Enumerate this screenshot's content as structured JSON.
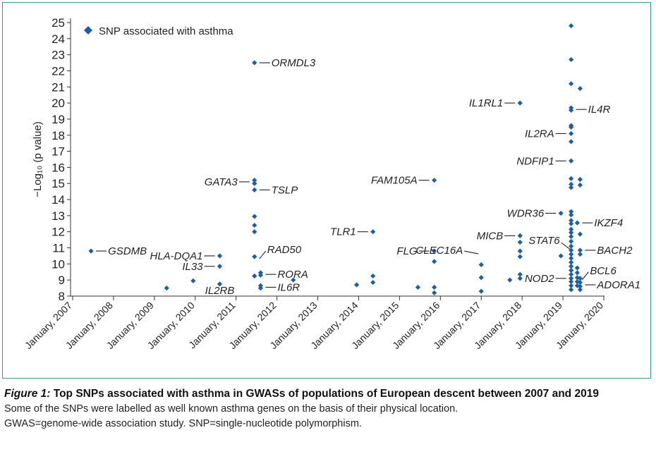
{
  "chart_data": {
    "type": "scatter",
    "ylabel": "−Log₁₀ (p value)",
    "ylim": [
      8,
      25
    ],
    "yticks": [
      8,
      9,
      10,
      11,
      12,
      13,
      14,
      15,
      16,
      17,
      18,
      19,
      20,
      21,
      22,
      23,
      24,
      25
    ],
    "xlim": [
      2007,
      2020
    ],
    "xticks": [
      {
        "value": 2007,
        "label": "January, 2007"
      },
      {
        "value": 2008,
        "label": "January, 2008"
      },
      {
        "value": 2009,
        "label": "January, 2009"
      },
      {
        "value": 2010,
        "label": "January, 2010"
      },
      {
        "value": 2011,
        "label": "January, 2011"
      },
      {
        "value": 2012,
        "label": "January, 2012"
      },
      {
        "value": 2013,
        "label": "January, 2013"
      },
      {
        "value": 2014,
        "label": "January, 2014"
      },
      {
        "value": 2015,
        "label": "January, 2015"
      },
      {
        "value": 2016,
        "label": "January, 2016"
      },
      {
        "value": 2017,
        "label": "January, 2017"
      },
      {
        "value": 2018,
        "label": "January, 2018"
      },
      {
        "value": 2019,
        "label": "January, 2019"
      },
      {
        "value": 2020,
        "label": "January, 2020"
      }
    ],
    "legend": {
      "label": "SNP associated with asthma",
      "position": "top-left"
    },
    "marker_color": "#1b5fa8",
    "series": [
      {
        "points": [
          {
            "x": 2007.45,
            "y": 10.8
          },
          {
            "x": 2009.3,
            "y": 8.5
          },
          {
            "x": 2009.95,
            "y": 8.95
          },
          {
            "x": 2010.6,
            "y": 10.5
          },
          {
            "x": 2010.6,
            "y": 9.85
          },
          {
            "x": 2010.6,
            "y": 8.75
          },
          {
            "x": 2011.45,
            "y": 22.5
          },
          {
            "x": 2011.45,
            "y": 15.2
          },
          {
            "x": 2011.45,
            "y": 15.0
          },
          {
            "x": 2011.45,
            "y": 14.6
          },
          {
            "x": 2011.45,
            "y": 12.95
          },
          {
            "x": 2011.45,
            "y": 12.4
          },
          {
            "x": 2011.45,
            "y": 12.0
          },
          {
            "x": 2011.45,
            "y": 10.45
          },
          {
            "x": 2011.45,
            "y": 9.25
          },
          {
            "x": 2011.6,
            "y": 9.45
          },
          {
            "x": 2011.6,
            "y": 9.3
          },
          {
            "x": 2011.6,
            "y": 8.65
          },
          {
            "x": 2011.6,
            "y": 8.5
          },
          {
            "x": 2012.4,
            "y": 9.0
          },
          {
            "x": 2013.95,
            "y": 8.7
          },
          {
            "x": 2014.35,
            "y": 12.0
          },
          {
            "x": 2014.35,
            "y": 9.25
          },
          {
            "x": 2014.35,
            "y": 8.85
          },
          {
            "x": 2015.45,
            "y": 8.55
          },
          {
            "x": 2015.85,
            "y": 15.2
          },
          {
            "x": 2015.85,
            "y": 10.8
          },
          {
            "x": 2015.85,
            "y": 10.15
          },
          {
            "x": 2015.85,
            "y": 8.55
          },
          {
            "x": 2015.85,
            "y": 8.2
          },
          {
            "x": 2017.0,
            "y": 9.95
          },
          {
            "x": 2017.0,
            "y": 9.15
          },
          {
            "x": 2017.0,
            "y": 8.3
          },
          {
            "x": 2017.7,
            "y": 9.0
          },
          {
            "x": 2017.95,
            "y": 20.0
          },
          {
            "x": 2017.95,
            "y": 11.75
          },
          {
            "x": 2017.95,
            "y": 11.35
          },
          {
            "x": 2017.95,
            "y": 10.8
          },
          {
            "x": 2017.95,
            "y": 10.45
          },
          {
            "x": 2017.95,
            "y": 9.35
          },
          {
            "x": 2017.95,
            "y": 9.1
          },
          {
            "x": 2018.95,
            "y": 13.15
          },
          {
            "x": 2019.2,
            "y": 24.8
          },
          {
            "x": 2019.2,
            "y": 22.7
          },
          {
            "x": 2019.2,
            "y": 21.2
          },
          {
            "x": 2019.2,
            "y": 19.7
          },
          {
            "x": 2019.2,
            "y": 19.55
          },
          {
            "x": 2019.2,
            "y": 18.6
          },
          {
            "x": 2019.2,
            "y": 18.5
          },
          {
            "x": 2019.2,
            "y": 18.1
          },
          {
            "x": 2019.2,
            "y": 17.6
          },
          {
            "x": 2019.2,
            "y": 16.4
          },
          {
            "x": 2019.2,
            "y": 15.3
          },
          {
            "x": 2019.2,
            "y": 14.95
          },
          {
            "x": 2019.2,
            "y": 14.75
          },
          {
            "x": 2019.2,
            "y": 13.25
          },
          {
            "x": 2019.2,
            "y": 13.05
          },
          {
            "x": 2019.2,
            "y": 12.7
          },
          {
            "x": 2019.2,
            "y": 12.5
          },
          {
            "x": 2019.2,
            "y": 12.15
          },
          {
            "x": 2019.2,
            "y": 11.95
          },
          {
            "x": 2019.2,
            "y": 11.7
          },
          {
            "x": 2019.2,
            "y": 11.4
          },
          {
            "x": 2019.2,
            "y": 11.1
          },
          {
            "x": 2019.2,
            "y": 10.85
          },
          {
            "x": 2019.2,
            "y": 10.6
          },
          {
            "x": 2019.2,
            "y": 10.35
          },
          {
            "x": 2019.2,
            "y": 10.1
          },
          {
            "x": 2019.2,
            "y": 9.85
          },
          {
            "x": 2019.2,
            "y": 9.6
          },
          {
            "x": 2019.2,
            "y": 9.35
          },
          {
            "x": 2019.2,
            "y": 9.1
          },
          {
            "x": 2019.2,
            "y": 8.9
          },
          {
            "x": 2019.2,
            "y": 8.65
          },
          {
            "x": 2019.2,
            "y": 8.4
          },
          {
            "x": 2018.95,
            "y": 10.5
          },
          {
            "x": 2019.35,
            "y": 12.55
          },
          {
            "x": 2019.35,
            "y": 9.75
          },
          {
            "x": 2019.35,
            "y": 9.45
          },
          {
            "x": 2019.35,
            "y": 9.15
          },
          {
            "x": 2019.35,
            "y": 8.9
          },
          {
            "x": 2019.35,
            "y": 8.65
          },
          {
            "x": 2019.42,
            "y": 20.9
          },
          {
            "x": 2019.42,
            "y": 15.25
          },
          {
            "x": 2019.42,
            "y": 14.9
          },
          {
            "x": 2019.42,
            "y": 11.85
          },
          {
            "x": 2019.42,
            "y": 10.85
          },
          {
            "x": 2019.42,
            "y": 10.6
          },
          {
            "x": 2019.42,
            "y": 9.1
          },
          {
            "x": 2019.42,
            "y": 8.85
          },
          {
            "x": 2019.42,
            "y": 8.6
          },
          {
            "x": 2019.42,
            "y": 8.4
          }
        ]
      }
    ],
    "annotations": [
      {
        "text": "GSDMB",
        "x": 2007.45,
        "y": 10.8,
        "side": "right"
      },
      {
        "text": "HLA-DQA1",
        "x": 2010.6,
        "y": 10.5,
        "side": "left"
      },
      {
        "text": "IL33",
        "x": 2010.6,
        "y": 9.85,
        "side": "left"
      },
      {
        "text": "IL2RB",
        "x": 2010.6,
        "y": 8.75,
        "side": "below"
      },
      {
        "text": "ORMDL3",
        "x": 2011.45,
        "y": 22.5,
        "side": "right"
      },
      {
        "text": "GATA3",
        "x": 2011.45,
        "y": 15.1,
        "side": "left"
      },
      {
        "text": "TSLP",
        "x": 2011.45,
        "y": 14.6,
        "side": "right"
      },
      {
        "text": "RAD50",
        "x": 2011.45,
        "y": 10.45,
        "side": "right-up"
      },
      {
        "text": "RORA",
        "x": 2011.6,
        "y": 9.35,
        "side": "right"
      },
      {
        "text": "IL6R",
        "x": 2011.6,
        "y": 8.55,
        "side": "right"
      },
      {
        "text": "TLR1",
        "x": 2014.35,
        "y": 12.0,
        "side": "left"
      },
      {
        "text": "FAM105A",
        "x": 2015.85,
        "y": 15.2,
        "side": "left"
      },
      {
        "text": "FLG",
        "x": 2015.85,
        "y": 10.8,
        "side": "left"
      },
      {
        "text": "CLEC16A",
        "x": 2017.0,
        "y": 10.45,
        "side": "left-up"
      },
      {
        "text": "IL1RL1",
        "x": 2017.95,
        "y": 20.0,
        "side": "left"
      },
      {
        "text": "MICB",
        "x": 2017.95,
        "y": 11.75,
        "side": "left"
      },
      {
        "text": "IL4R",
        "x": 2019.2,
        "y": 19.6,
        "side": "right"
      },
      {
        "text": "IL2RA",
        "x": 2019.2,
        "y": 18.1,
        "side": "left"
      },
      {
        "text": "NDFIP1",
        "x": 2019.2,
        "y": 16.4,
        "side": "left"
      },
      {
        "text": "WDR36",
        "x": 2018.95,
        "y": 13.15,
        "side": "left"
      },
      {
        "text": "IKZF4",
        "x": 2019.35,
        "y": 12.55,
        "side": "right"
      },
      {
        "text": "STAT6",
        "x": 2019.2,
        "y": 11.1,
        "side": "left-down"
      },
      {
        "text": "BACH2",
        "x": 2019.42,
        "y": 10.85,
        "side": "right"
      },
      {
        "text": "NOD2",
        "x": 2019.2,
        "y": 9.1,
        "side": "left"
      },
      {
        "text": "BCL6",
        "x": 2019.35,
        "y": 9.15,
        "side": "right-up"
      },
      {
        "text": "ADORA1",
        "x": 2019.42,
        "y": 8.7,
        "side": "right"
      }
    ]
  },
  "caption": {
    "figure_label": "Figure 1:",
    "title": "Top SNPs associated with asthma in GWASs of populations of European descent between 2007 and 2019",
    "line1": "Some of the SNPs were labelled as well known asthma genes on the basis of their physical location.",
    "line2": "GWAS=genome-wide association study. SNP=single-nucleotide polymorphism."
  }
}
